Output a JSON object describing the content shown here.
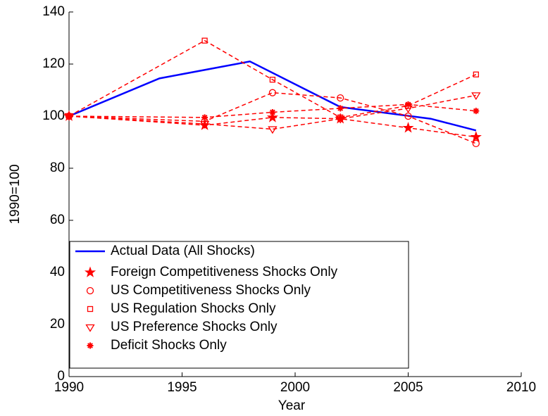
{
  "chart_data": {
    "type": "line",
    "xlabel": "Year",
    "ylabel": "1990=100",
    "xlim": [
      1990,
      2010
    ],
    "xticks": [
      1990,
      1995,
      2000,
      2005,
      2010
    ],
    "ylim": [
      0,
      140
    ],
    "yticks": [
      0,
      20,
      40,
      60,
      80,
      100,
      120,
      140
    ],
    "legend": "lower left",
    "series": [
      {
        "name": "Actual Data (All Shocks)",
        "color": "#0000ff",
        "style": "solid",
        "marker": "none",
        "x": [
          1990,
          1994,
          1998,
          2002,
          2006,
          2008
        ],
        "values": [
          100,
          114.5,
          121,
          103.5,
          99,
          94.5
        ]
      },
      {
        "name": "Foreign Competitiveness Shocks Only",
        "color": "#ff0000",
        "style": "dashed",
        "marker": "star",
        "x": [
          1990,
          1996,
          1999,
          2002,
          2005,
          2008
        ],
        "values": [
          100,
          96.5,
          99.5,
          99,
          95.5,
          92
        ]
      },
      {
        "name": "US Competitiveness Shocks Only",
        "color": "#ff0000",
        "style": "dashed",
        "marker": "circle",
        "x": [
          1990,
          1996,
          1999,
          2002,
          2005,
          2008
        ],
        "values": [
          100,
          98,
          109,
          107,
          100,
          89.5
        ]
      },
      {
        "name": "US Regulation Shocks Only",
        "color": "#ff0000",
        "style": "dashed",
        "marker": "square",
        "x": [
          1990,
          1996,
          1999,
          2002,
          2005,
          2008
        ],
        "values": [
          100,
          129,
          114,
          99.5,
          104,
          116
        ]
      },
      {
        "name": "US Preference Shocks Only",
        "color": "#ff0000",
        "style": "dashed",
        "marker": "triangle-down",
        "x": [
          1990,
          1996,
          1999,
          2002,
          2005,
          2008
        ],
        "values": [
          100,
          97,
          95,
          99,
          103,
          108
        ]
      },
      {
        "name": "Deficit Shocks Only",
        "color": "#ff0000",
        "style": "dashed",
        "marker": "asterisk",
        "x": [
          1990,
          1996,
          1999,
          2002,
          2005,
          2008
        ],
        "values": [
          100,
          99.5,
          101.5,
          103,
          104.5,
          102
        ]
      }
    ]
  }
}
